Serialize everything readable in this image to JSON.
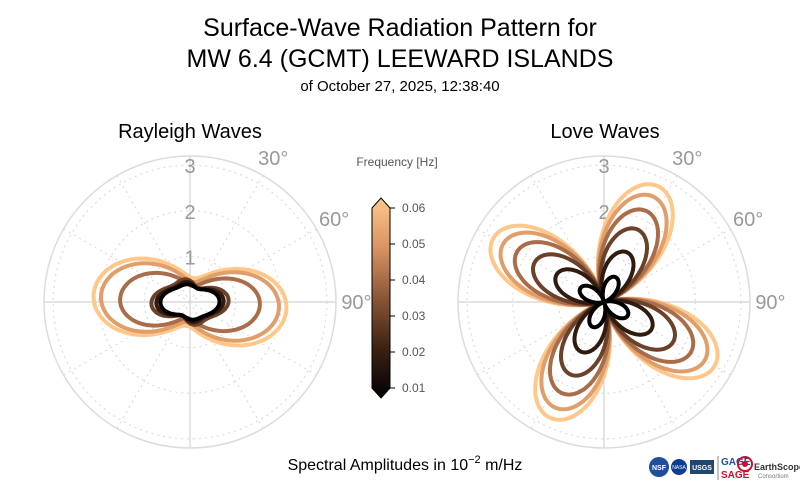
{
  "header": {
    "title_line1": "Surface-Wave Radiation Pattern for",
    "title_line2": "MW 6.4 (GCMT) LEEWARD ISLANDS",
    "subtitle": "of October 27, 2025, 12:38:40"
  },
  "footer": {
    "caption_prefix": "Spectral Amplitudes in 10",
    "caption_exponent": "−2",
    "caption_suffix": " m/Hz"
  },
  "logos": {
    "nsf": "NSF",
    "nasa": "NASA",
    "usgs": "USGS",
    "gage": "GAGE",
    "sage": "SAGE",
    "earthscope": "EarthScope",
    "consortium": "Consortium",
    "accent": "#c8102e",
    "blue": "#1f4e9c"
  },
  "colors": {
    "grid": "#dcdcdc",
    "tick_text": "#999999",
    "cmap_low": "#000000",
    "cmap_mid": "#a8694a",
    "cmap_high": "#ffc88a"
  },
  "chart_data": [
    {
      "type": "polar-line",
      "title": "Rayleigh Waves",
      "r_ticks": [
        "1",
        "2",
        "3"
      ],
      "r_max": 3.2,
      "theta_ticks": [
        "30°",
        "60°",
        "90°"
      ],
      "theta_zero": "north",
      "theta_direction": "clockwise",
      "series": [
        {
          "frequency_hz": 0.01,
          "a0": 0.46,
          "a2": 0.1,
          "a4": 0.05,
          "phase": 20
        },
        {
          "frequency_hz": 0.02,
          "a0": 0.5,
          "a2": 0.12,
          "a4": 0.08,
          "phase": 25
        },
        {
          "frequency_hz": 0.03,
          "a0": 0.56,
          "a2": 0.15,
          "a4": 0.1,
          "phase": 30
        },
        {
          "frequency_hz": 0.04,
          "a0": 0.82,
          "a2": 0.3,
          "a4": 0.04,
          "phase": 35
        },
        {
          "frequency_hz": 0.05,
          "a0": 1.05,
          "a2": 0.4,
          "a4": 0.03,
          "phase": 40
        },
        {
          "frequency_hz": 0.06,
          "a0": 1.18,
          "a2": 0.4,
          "a4": 0.03,
          "phase": 45
        }
      ]
    },
    {
      "type": "polar-line",
      "title": "Love Waves",
      "r_ticks": [
        "1",
        "2",
        "3"
      ],
      "r_max": 3.2,
      "theta_ticks": [
        "30°",
        "60°",
        "90°"
      ],
      "theta_zero": "north",
      "theta_direction": "clockwise",
      "lobe_azimuths_deg": [
        25,
        120,
        205,
        300
      ],
      "series": [
        {
          "frequency_hz": 0.01,
          "amplitude": 0.6
        },
        {
          "frequency_hz": 0.02,
          "amplitude": 1.2
        },
        {
          "frequency_hz": 0.03,
          "amplitude": 1.75
        },
        {
          "frequency_hz": 0.04,
          "amplitude": 2.2
        },
        {
          "frequency_hz": 0.05,
          "amplitude": 2.55
        },
        {
          "frequency_hz": 0.06,
          "amplitude": 2.8
        }
      ]
    }
  ],
  "colorbar": {
    "label": "Frequency [Hz]",
    "min": 0.01,
    "max": 0.06,
    "ticks": [
      "0.01",
      "0.02",
      "0.03",
      "0.04",
      "0.05",
      "0.06"
    ],
    "extend": "both"
  }
}
